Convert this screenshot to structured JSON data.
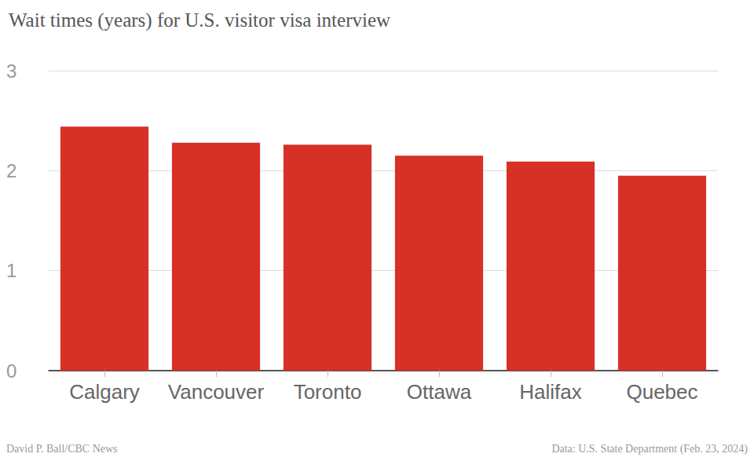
{
  "chart_data": {
    "type": "bar",
    "title": "Wait times (years) for U.S. visitor visa interview",
    "categories": [
      "Calgary",
      "Vancouver",
      "Toronto",
      "Ottawa",
      "Halifax",
      "Quebec"
    ],
    "values": [
      2.44,
      2.28,
      2.26,
      2.15,
      2.09,
      1.95
    ],
    "color": "#d63027",
    "ylim": [
      0,
      3
    ],
    "yticks": [
      0,
      1,
      2,
      3
    ],
    "grid": true,
    "annotations": [
      "David P. Ball/CBC News",
      "Data: U.S. State Department (Feb. 23, 2024)"
    ]
  }
}
